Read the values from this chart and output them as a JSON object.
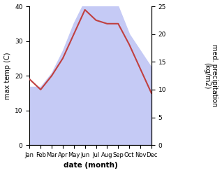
{
  "months": [
    "Jan",
    "Feb",
    "Mar",
    "Apr",
    "May",
    "Jun",
    "Jul",
    "Aug",
    "Sep",
    "Oct",
    "Nov",
    "Dec"
  ],
  "temperature": [
    19,
    16,
    20,
    25,
    32,
    39,
    36,
    35,
    35,
    29,
    22,
    15
  ],
  "precipitation": [
    10.5,
    10.5,
    13,
    17,
    22,
    26,
    27,
    27,
    25,
    20,
    17,
    14
  ],
  "temp_color": "#c04040",
  "precip_fill_color": "#c5caf5",
  "xlabel": "date (month)",
  "ylabel_left": "max temp (C)",
  "ylabel_right": "med. precipitation\n(kg/m2)",
  "ylim_left": [
    0,
    40
  ],
  "ylim_right": [
    0,
    25
  ],
  "background_color": "#ffffff"
}
